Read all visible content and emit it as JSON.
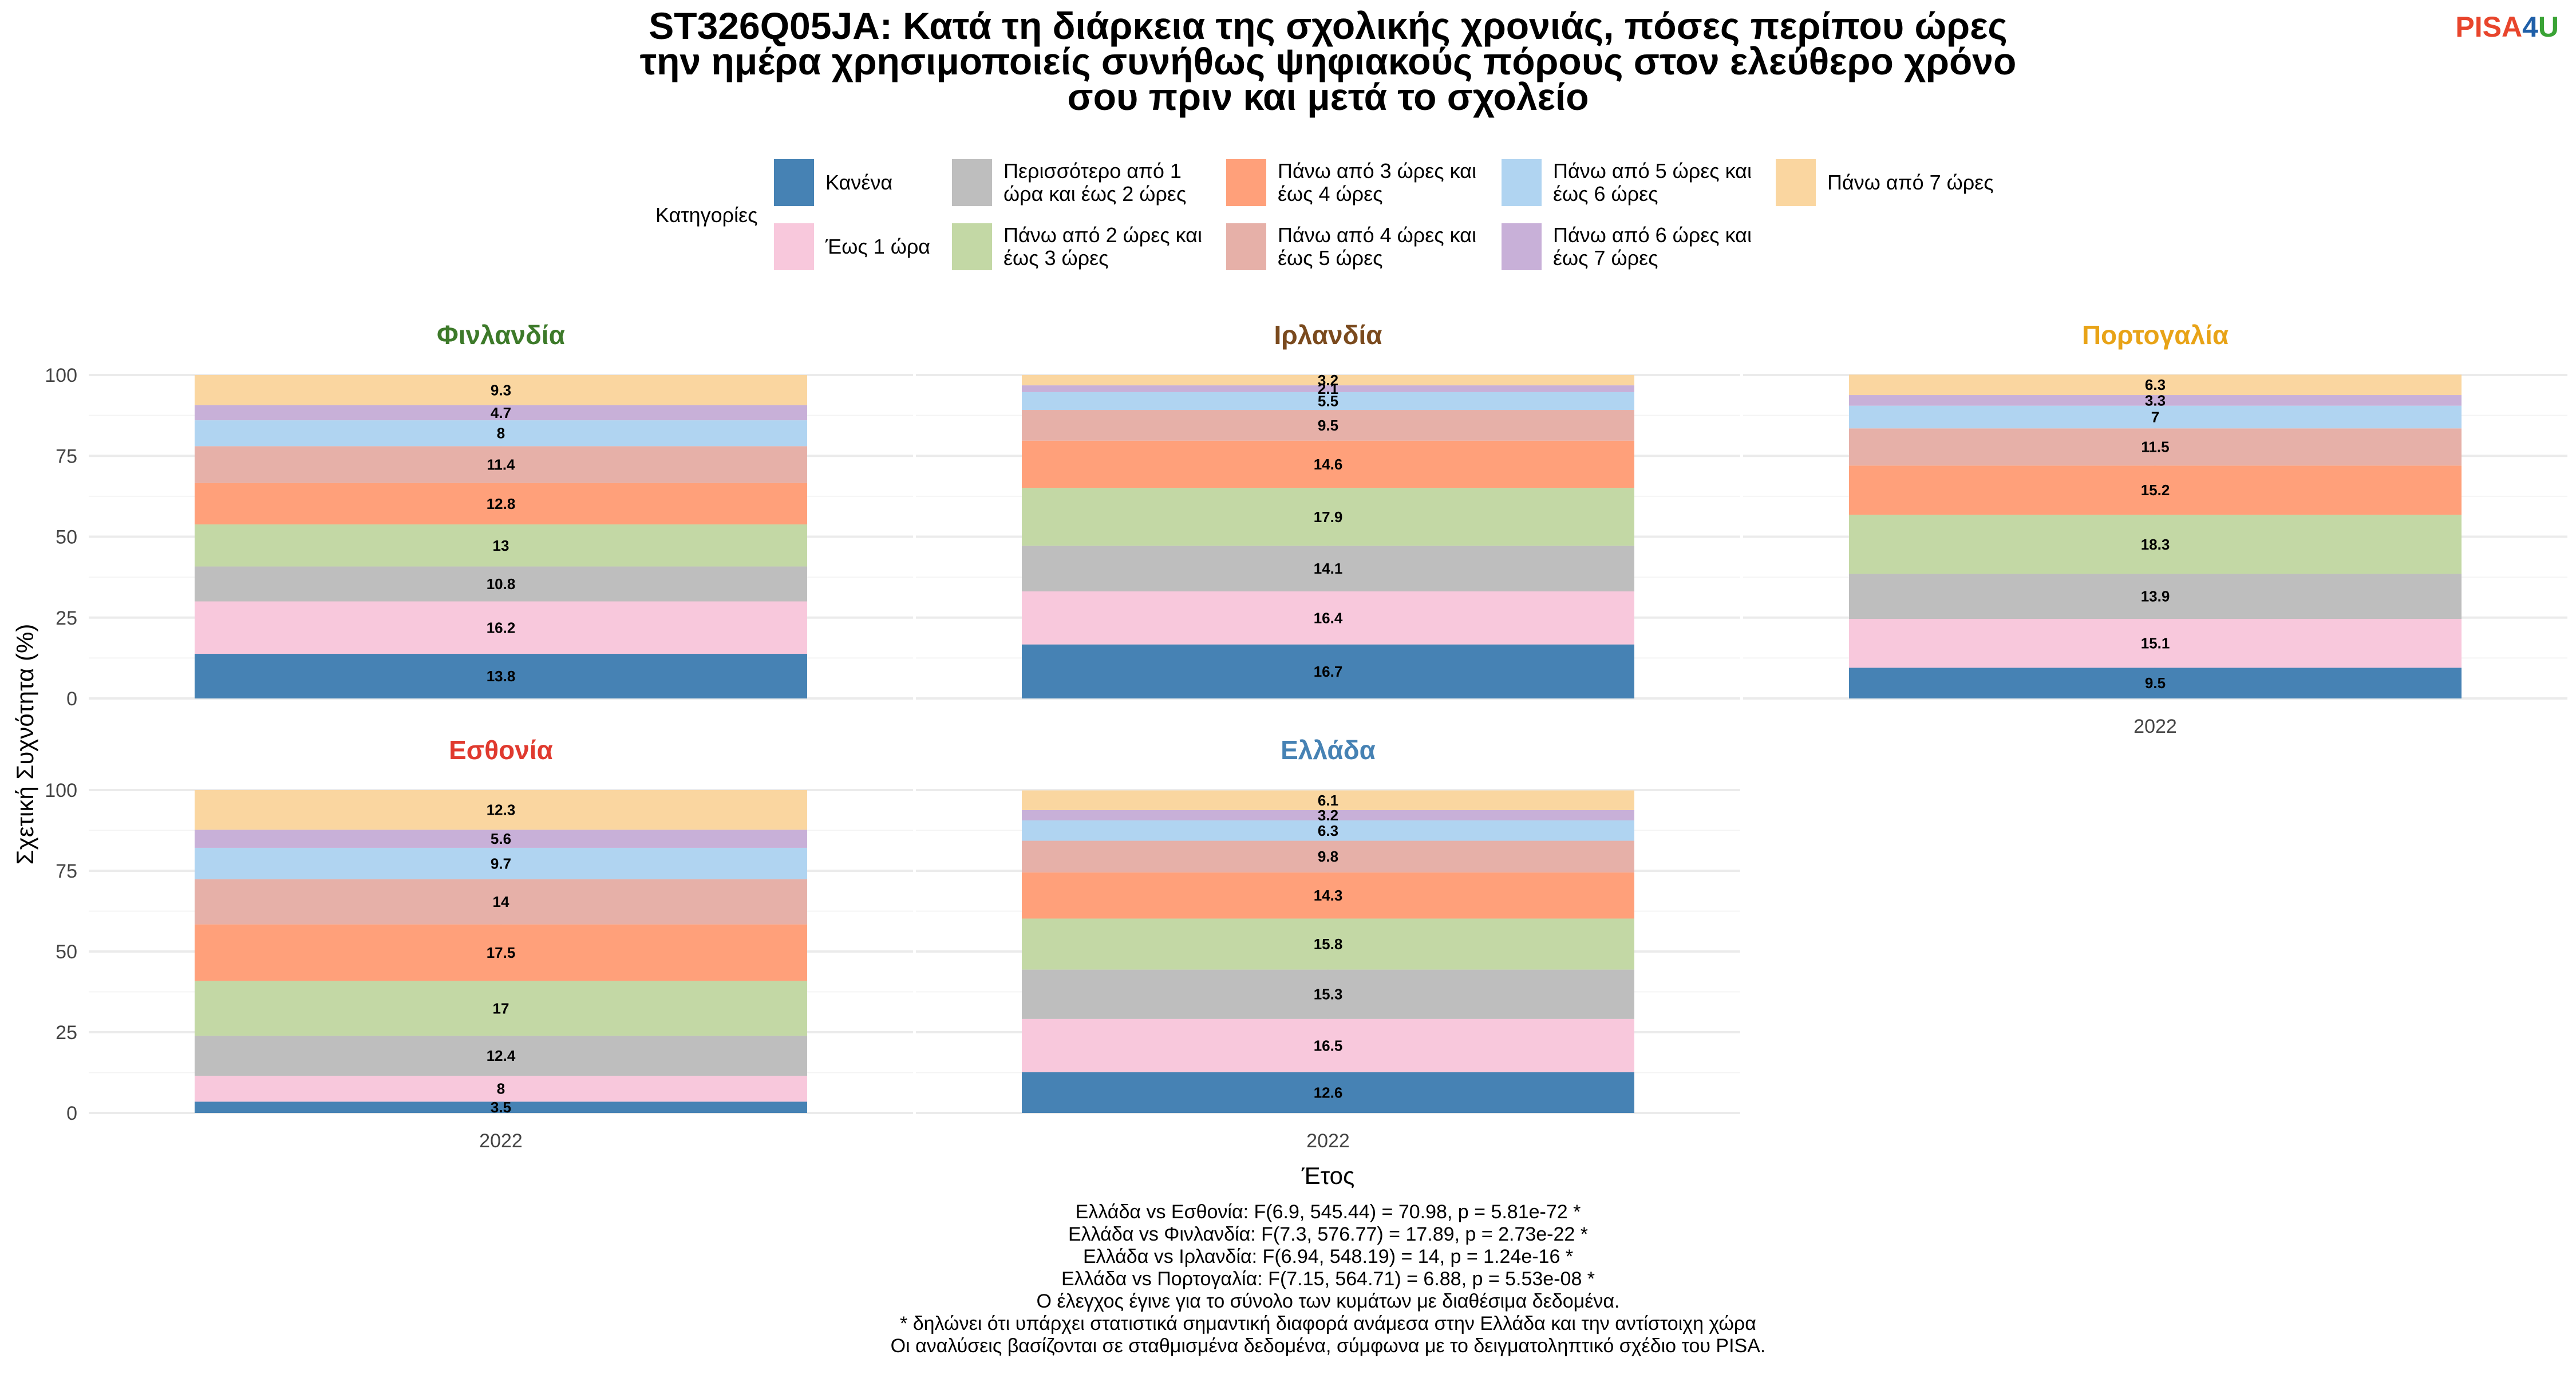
{
  "logo": {
    "part1": "PISA",
    "part2": "4",
    "part3": "U",
    "color1": "#e8452c",
    "color2": "#1f5fa8",
    "color3": "#3aa335"
  },
  "chart_data": {
    "type": "bar",
    "stacked": true,
    "title_lines": [
      "ST326Q05JA: Κατά τη διάρκεια της σχολικής χρονιάς, πόσες περίπου ώρες",
      "την ημέρα χρησιμοποιείς συνήθως ψηφιακούς πόρους στον ελεύθερο χρόνο",
      "σου πριν και μετά το σχολείο"
    ],
    "xlabel": "Έτος",
    "ylabel": "Σχετική Συχνότητα (%)",
    "ylim": [
      0,
      100
    ],
    "yticks": [
      0,
      25,
      50,
      75,
      100
    ],
    "grid": true,
    "legend_placement": "top",
    "legend_title": "Κατηγορίες",
    "categories": [
      {
        "lines": [
          "Κανένα"
        ],
        "color": "#4682b4"
      },
      {
        "lines": [
          "Έως 1 ώρα"
        ],
        "color": "#f8c8dc"
      },
      {
        "lines": [
          "Περισσότερο από 1",
          "ώρα και έως 2 ώρες"
        ],
        "color": "#bebebe"
      },
      {
        "lines": [
          "Πάνω από 2 ώρες και",
          "έως 3 ώρες"
        ],
        "color": "#c3d8a5"
      },
      {
        "lines": [
          "Πάνω από 3 ώρες και",
          "έως 4 ώρες"
        ],
        "color": "#ffa07a"
      },
      {
        "lines": [
          "Πάνω από 4 ώρες και",
          "έως 5 ώρες"
        ],
        "color": "#e6b0a8"
      },
      {
        "lines": [
          "Πάνω από 5 ώρες και",
          "έως 6 ώρες"
        ],
        "color": "#b0d4f1"
      },
      {
        "lines": [
          "Πάνω από 6 ώρες και",
          "έως 7 ώρες"
        ],
        "color": "#c8b0d8"
      },
      {
        "lines": [
          "Πάνω από 7 ώρες"
        ],
        "color": "#fad6a0"
      }
    ],
    "panels": [
      {
        "country": "Φινλανδία",
        "color": "#3d7a2a",
        "year": "2022",
        "values": [
          13.8,
          16.2,
          10.8,
          13,
          12.8,
          11.4,
          8,
          4.7,
          9.3
        ]
      },
      {
        "country": "Ιρλανδία",
        "color": "#7a4a1e",
        "year": "2022",
        "values": [
          16.7,
          16.4,
          14.1,
          17.9,
          14.6,
          9.5,
          5.5,
          2.1,
          3.2
        ]
      },
      {
        "country": "Πορτογαλία",
        "color": "#e8a317",
        "year": "2022",
        "values": [
          9.5,
          15.1,
          13.9,
          18.3,
          15.2,
          11.5,
          7,
          3.3,
          6.3
        ]
      },
      {
        "country": "Εσθονία",
        "color": "#e03a2f",
        "year": "2022",
        "values": [
          3.5,
          8,
          12.4,
          17,
          17.5,
          14,
          9.7,
          5.6,
          12.3
        ]
      },
      {
        "country": "Ελλάδα",
        "color": "#4682b4",
        "year": "2022",
        "values": [
          12.6,
          16.5,
          15.3,
          15.8,
          14.3,
          9.8,
          6.3,
          3.2,
          6.1
        ]
      }
    ],
    "footnotes": [
      "Ελλάδα vs Εσθονία: F(6.9, 545.44) = 70.98, p = 5.81e-72 *",
      "Ελλάδα vs Φινλανδία: F(7.3, 576.77) = 17.89, p = 2.73e-22 *",
      "Ελλάδα vs Ιρλανδία: F(6.94, 548.19) = 14, p = 1.24e-16 *",
      "Ελλάδα vs Πορτογαλία: F(7.15, 564.71) = 6.88, p = 5.53e-08 *",
      "Ο έλεγχος έγινε για το σύνολο των κυμάτων με διαθέσιμα δεδομένα.",
      "* δηλώνει ότι υπάρχει στατιστικά σημαντική διαφορά ανάμεσα στην Ελλάδα και την αντίστοιχη χώρα",
      "Οι αναλύσεις βασίζονται σε σταθμισμένα δεδομένα, σύμφωνα με το δειγματοληπτικό σχέδιο του PISA."
    ]
  }
}
